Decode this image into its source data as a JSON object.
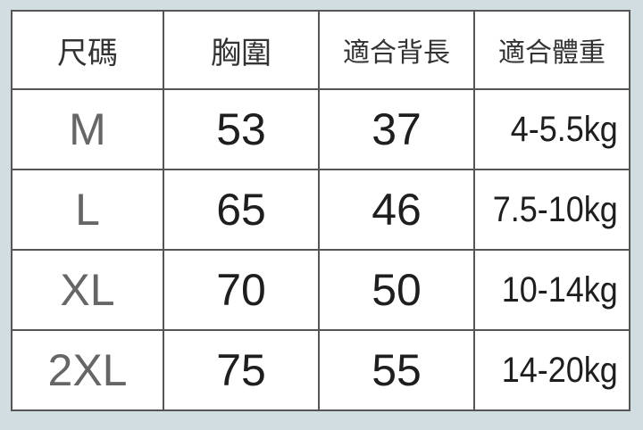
{
  "table": {
    "headers": [
      "尺碼",
      "胸圍",
      "適合背長",
      "適合體重"
    ],
    "rows": [
      [
        "M",
        "53",
        "37",
        "4-5.5kg"
      ],
      [
        "L",
        "65",
        "46",
        "7.5-10kg"
      ],
      [
        "XL",
        "70",
        "50",
        "10-14kg"
      ],
      [
        "2XL",
        "75",
        "55",
        "14-20kg"
      ]
    ]
  },
  "colors": {
    "background": "#d2dde2",
    "grid": "#555555",
    "size_text": "#666666",
    "value_text": "#1e1e1e"
  }
}
